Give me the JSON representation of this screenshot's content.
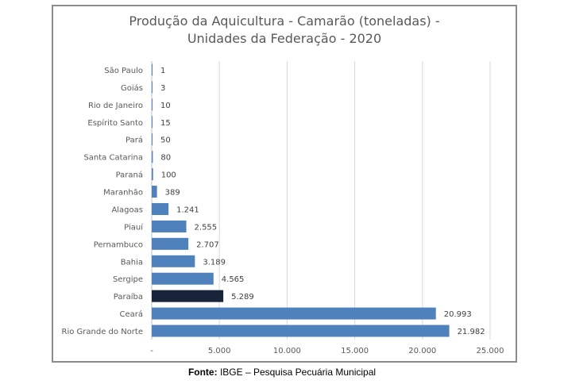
{
  "chart_data": {
    "type": "bar",
    "orientation": "horizontal",
    "title_line1": "Produção da Aquicultura - Camarão (toneladas) -",
    "title_line2": "Unidades da Federação - 2020",
    "categories": [
      "São Paulo",
      "Goiás",
      "Rio de Janeiro",
      "Espírito Santo",
      "Pará",
      "Santa Catarina",
      "Paraná",
      "Maranhão",
      "Alagoas",
      "Piauí",
      "Pernambuco",
      "Bahia",
      "Sergipe",
      "Paraíba",
      "Ceará",
      "Rio Grande do Norte"
    ],
    "values": [
      1,
      3,
      10,
      15,
      50,
      80,
      100,
      389,
      1241,
      2555,
      2707,
      3189,
      4565,
      5289,
      20993,
      21982
    ],
    "value_labels": [
      "1",
      "3",
      "10",
      "15",
      "50",
      "80",
      "100",
      "389",
      "1.241",
      "2.555",
      "2.707",
      "3.189",
      "4.565",
      "5.289",
      "20.993",
      "21.982"
    ],
    "xlim": [
      0,
      25000
    ],
    "x_ticks": [
      0,
      5000,
      10000,
      15000,
      20000,
      25000
    ],
    "x_tick_labels": [
      "-",
      "5.000",
      "10.000",
      "15.000",
      "20.000",
      "25.000"
    ],
    "grid": true,
    "bar_color": "#4f81bd",
    "highlight_category": "Paraíba",
    "highlight_color": "#17243a"
  },
  "source": {
    "label": "Fonte:",
    "text": "IBGE – Pesquisa Pecuária Municipal"
  }
}
